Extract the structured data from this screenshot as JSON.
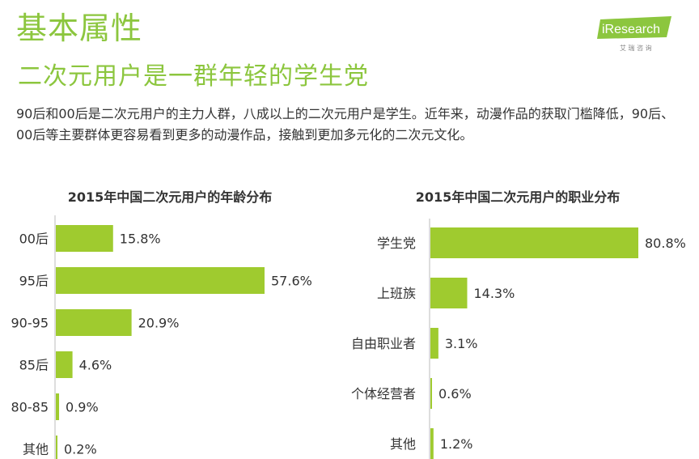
{
  "header": {
    "title": "基本属性",
    "subtitle": "二次元用户是一群年轻的学生党",
    "logo_text": "iResearch",
    "logo_sub": "艾 瑞 咨 询"
  },
  "intro": "90后和00后是二次元用户的主力人群，八成以上的二次元用户是学生。近年来，动漫作品的获取门槛降低，90后、00后等主要群体更容易看到更多的动漫作品，接触到更加多元化的二次元文化。",
  "colors": {
    "accent": "#8cc63e",
    "bar": "#9fcb2f"
  },
  "chart_data": [
    {
      "type": "bar",
      "orientation": "horizontal",
      "title": "2015年中国二次元用户的年龄分布",
      "categories": [
        "00后",
        "95后",
        "90-95",
        "85后",
        "80-85",
        "其他"
      ],
      "values": [
        15.8,
        57.6,
        20.9,
        4.6,
        0.9,
        0.2
      ],
      "value_labels": [
        "15.8%",
        "57.6%",
        "20.9%",
        "4.6%",
        "0.9%",
        "0.2%"
      ],
      "unit": "%"
    },
    {
      "type": "bar",
      "orientation": "horizontal",
      "title": "2015年中国二次元用户的职业分布",
      "categories": [
        "学生党",
        "上班族",
        "自由职业者",
        "个体经营者",
        "其他"
      ],
      "values": [
        80.8,
        14.3,
        3.1,
        0.6,
        1.2
      ],
      "value_labels": [
        "80.8%",
        "14.3%",
        "3.1%",
        "0.6%",
        "1.2%"
      ],
      "unit": "%"
    }
  ]
}
